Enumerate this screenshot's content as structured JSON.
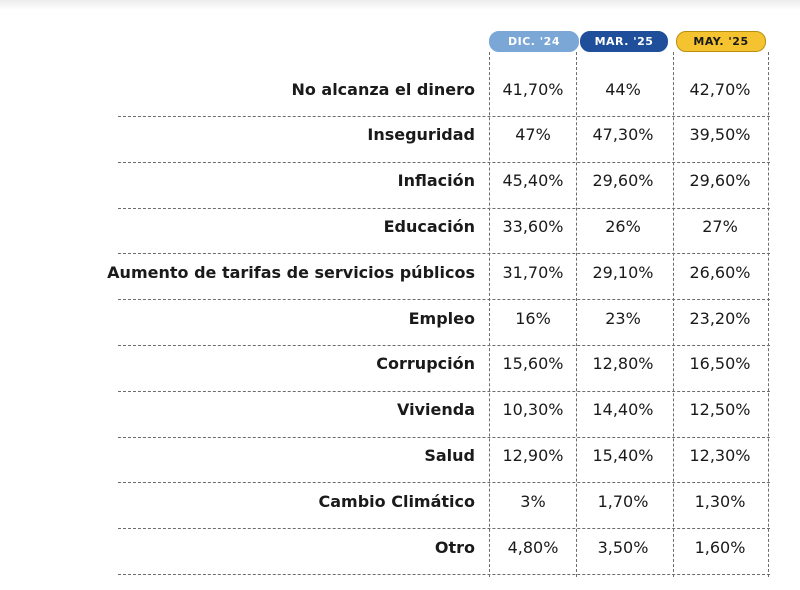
{
  "chart_data": {
    "type": "table",
    "columns": [
      {
        "label": "DIC. '24",
        "color": "#7ba7d6",
        "text_color": "#ffffff",
        "border": "#7ba7d6"
      },
      {
        "label": "MAR. '25",
        "color": "#1f4f9a",
        "text_color": "#ffffff",
        "border": "#1f4f9a"
      },
      {
        "label": "MAY. '25",
        "color": "#f5c330",
        "text_color": "#1a1a1a",
        "border": "#b98f10"
      }
    ],
    "rows": [
      {
        "label": "No alcanza el dinero",
        "values": [
          "41,70%",
          "44%",
          "42,70%"
        ]
      },
      {
        "label": "Inseguridad",
        "values": [
          "47%",
          "47,30%",
          "39,50%"
        ]
      },
      {
        "label": "Inflación",
        "values": [
          "45,40%",
          "29,60%",
          "29,60%"
        ]
      },
      {
        "label": "Educación",
        "values": [
          "33,60%",
          "26%",
          "27%"
        ]
      },
      {
        "label": "Aumento de tarifas de servicios públicos",
        "values": [
          "31,70%",
          "29,10%",
          "26,60%"
        ]
      },
      {
        "label": "Empleo",
        "values": [
          "16%",
          "23%",
          "23,20%"
        ]
      },
      {
        "label": "Corrupción",
        "values": [
          "15,60%",
          "12,80%",
          "16,50%"
        ]
      },
      {
        "label": "Vivienda",
        "values": [
          "10,30%",
          "14,40%",
          "12,50%"
        ]
      },
      {
        "label": "Salud",
        "values": [
          "12,90%",
          "15,40%",
          "12,30%"
        ]
      },
      {
        "label": "Cambio Climático",
        "values": [
          "3%",
          "1,70%",
          "1,30%"
        ]
      },
      {
        "label": "Otro",
        "values": [
          "4,80%",
          "3,50%",
          "1,60%"
        ]
      }
    ]
  }
}
